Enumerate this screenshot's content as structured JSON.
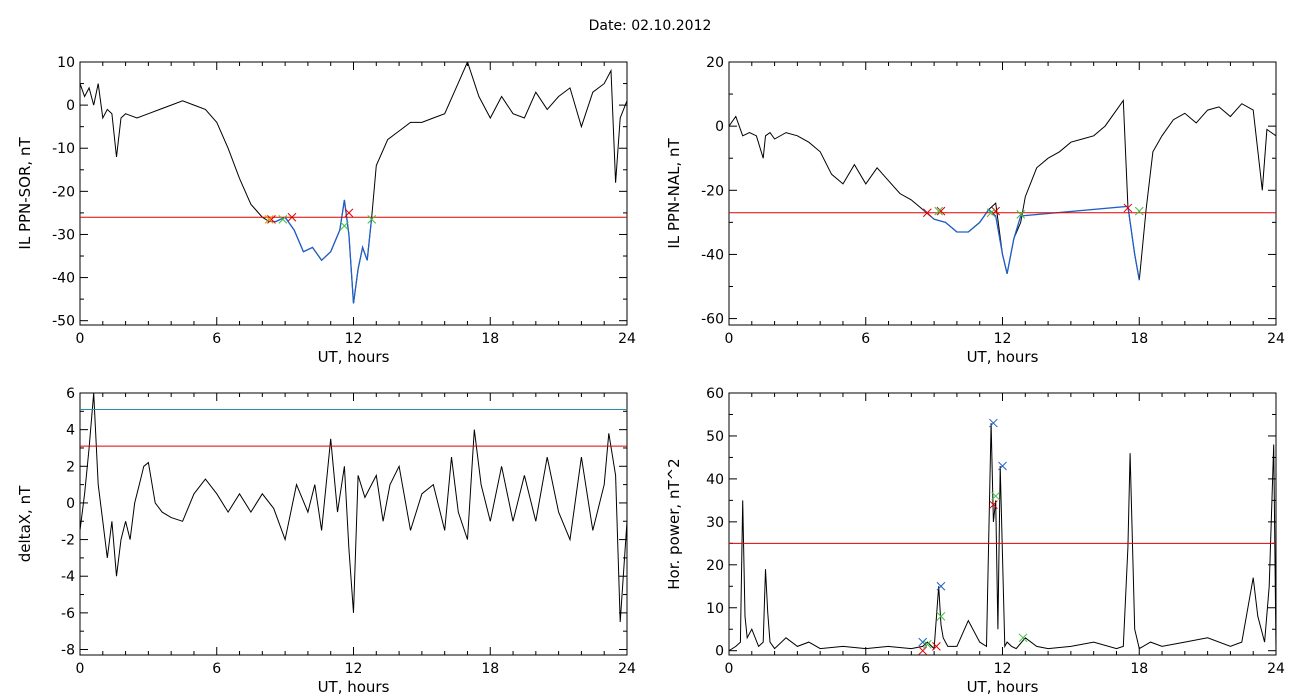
{
  "page": {
    "title": "Date:  02.10.2012"
  },
  "chart_data": [
    {
      "id": "p1",
      "type": "line",
      "xlabel": "UT, hours",
      "ylabel": "IL PPN-SOR, nT",
      "xlim": [
        0,
        24
      ],
      "ylim": [
        -51,
        10
      ],
      "xticks": [
        "0",
        "6",
        "12",
        "18",
        "24"
      ],
      "yticks": [
        "10",
        "0",
        "-10",
        "-20",
        "-30",
        "-40",
        "-50"
      ],
      "ytick_values": [
        10,
        0,
        -10,
        -20,
        -30,
        -40,
        -50
      ],
      "series": [
        {
          "color": "#000000",
          "x": [
            0,
            0.2,
            0.4,
            0.6,
            0.8,
            1.0,
            1.2,
            1.4,
            1.6,
            1.8,
            2.0,
            2.5,
            3.0,
            3.5,
            4.0,
            4.5,
            5.0,
            5.5,
            6.0,
            6.5,
            7.0,
            7.5,
            8.0,
            8.3,
            8.6,
            9.0,
            9.4,
            9.8,
            10.2,
            10.6,
            11.0,
            11.4,
            11.6,
            11.8,
            12.0,
            12.2,
            12.4,
            12.6,
            12.8,
            13.0,
            13.5,
            14.0,
            14.5,
            15.0,
            15.5,
            16.0,
            16.5,
            17.0,
            17.5,
            18.0,
            18.5,
            19.0,
            19.5,
            20.0,
            20.5,
            21.0,
            21.5,
            22.0,
            22.5,
            23.0,
            23.3,
            23.5,
            23.7,
            24.0
          ],
          "y": [
            5,
            2,
            4,
            0,
            5,
            -3,
            -1,
            -2,
            -12,
            -3,
            -2,
            -3,
            -2,
            -1,
            0,
            1,
            0,
            -1,
            -4,
            -10,
            -17,
            -23,
            -26,
            -27,
            -27,
            -26,
            -29,
            -34,
            -33,
            -36,
            -34,
            -29,
            -22,
            -30,
            -46,
            -38,
            -33,
            -36,
            -26,
            -14,
            -8,
            -6,
            -4,
            -4,
            -3,
            -2,
            4,
            10,
            2,
            -3,
            2,
            -2,
            -3,
            3,
            -1,
            2,
            4,
            -5,
            3,
            5,
            8,
            -18,
            -3,
            1
          ]
        },
        {
          "color": "#1f5fc8",
          "x": [
            8.3,
            8.6,
            9.0,
            9.4,
            9.8,
            10.2,
            10.6,
            11.0,
            11.4,
            11.6,
            11.8,
            12.0,
            12.2,
            12.4,
            12.6,
            12.8
          ],
          "y": [
            -27,
            -27,
            -26,
            -29,
            -34,
            -33,
            -36,
            -34,
            -29,
            -22,
            -30,
            -46,
            -38,
            -33,
            -36,
            -26
          ]
        }
      ],
      "hlines": [
        {
          "y": -26,
          "color": "#e00000"
        }
      ],
      "markers": [
        {
          "x": 8.4,
          "y": -26.5,
          "color": "#e00000"
        },
        {
          "x": 8.3,
          "y": -26.5,
          "color": "#d4a000"
        },
        {
          "x": 9.3,
          "y": -26,
          "color": "#e00000"
        },
        {
          "x": 8.9,
          "y": -26.5,
          "color": "#40c040"
        },
        {
          "x": 11.8,
          "y": -25,
          "color": "#e00000"
        },
        {
          "x": 11.6,
          "y": -28,
          "color": "#40c040"
        },
        {
          "x": 12.8,
          "y": -26.5,
          "color": "#40c040"
        }
      ]
    },
    {
      "id": "p2",
      "type": "line",
      "xlabel": "UT, hours",
      "ylabel": "IL PPN-NAL, nT",
      "xlim": [
        0,
        24
      ],
      "ylim": [
        -62,
        20
      ],
      "xticks": [
        "0",
        "6",
        "12",
        "18",
        "24"
      ],
      "yticks": [
        "20",
        "0",
        "-20",
        "-40",
        "-60"
      ],
      "ytick_values": [
        20,
        0,
        -20,
        -40,
        -60
      ],
      "series": [
        {
          "color": "#000000",
          "x": [
            0,
            0.3,
            0.6,
            0.9,
            1.2,
            1.5,
            1.6,
            1.8,
            2.0,
            2.5,
            3.0,
            3.5,
            4.0,
            4.5,
            5.0,
            5.5,
            6.0,
            6.5,
            7.0,
            7.5,
            8.0,
            8.5,
            9.0,
            9.5,
            10.0,
            10.5,
            11.0,
            11.4,
            11.7,
            12.0,
            12.2,
            12.5,
            12.8,
            13.0,
            13.5,
            14.0,
            14.5,
            15.0,
            15.5,
            16.0,
            16.5,
            17.0,
            17.3,
            17.5,
            17.8,
            18.0,
            18.3,
            18.6,
            19.0,
            19.5,
            20.0,
            20.5,
            21.0,
            21.5,
            22.0,
            22.5,
            23.0,
            23.4,
            23.6,
            23.8,
            24.0
          ],
          "y": [
            0,
            3,
            -3,
            -2,
            -3,
            -10,
            -3,
            -2,
            -4,
            -2,
            -3,
            -5,
            -8,
            -15,
            -18,
            -12,
            -18,
            -13,
            -17,
            -21,
            -23,
            -26,
            -29,
            -30,
            -33,
            -33,
            -30,
            -26,
            -24,
            -40,
            -46,
            -35,
            -30,
            -22,
            -13,
            -10,
            -8,
            -5,
            -4,
            -3,
            0,
            5,
            8,
            -25,
            -40,
            -48,
            -26,
            -8,
            -3,
            2,
            4,
            1,
            5,
            6,
            3,
            7,
            5,
            -20,
            -1,
            -2,
            -3
          ]
        },
        {
          "color": "#1f5fc8",
          "x": [
            8.5,
            9.0,
            9.5,
            10.0,
            10.5,
            11.0,
            11.4,
            11.7,
            12.0,
            12.2,
            12.5,
            12.8,
            17.5,
            17.8,
            18.0
          ],
          "y": [
            -26,
            -29,
            -30,
            -33,
            -33,
            -30,
            -26,
            -28,
            -40,
            -46,
            -35,
            -28,
            -25,
            -40,
            -48
          ]
        }
      ],
      "hlines": [
        {
          "y": -27,
          "color": "#e00000"
        }
      ],
      "markers": [
        {
          "x": 8.7,
          "y": -27,
          "color": "#e00000"
        },
        {
          "x": 9.3,
          "y": -26.5,
          "color": "#e00000"
        },
        {
          "x": 9.2,
          "y": -26.5,
          "color": "#40c040"
        },
        {
          "x": 11.7,
          "y": -26.5,
          "color": "#e00000"
        },
        {
          "x": 11.5,
          "y": -27,
          "color": "#40c040"
        },
        {
          "x": 12.8,
          "y": -27.5,
          "color": "#40c040"
        },
        {
          "x": 17.5,
          "y": -25.5,
          "color": "#e00000"
        },
        {
          "x": 18.0,
          "y": -26.5,
          "color": "#40c040"
        }
      ]
    },
    {
      "id": "p3",
      "type": "line",
      "xlabel": "UT, hours",
      "ylabel": "deltaX, nT",
      "xlim": [
        0,
        24
      ],
      "ylim": [
        -8.3,
        6
      ],
      "xticks": [
        "0",
        "6",
        "12",
        "18",
        "24"
      ],
      "yticks": [
        "6",
        "4",
        "2",
        "0",
        "-2",
        "-4",
        "-6",
        "-8"
      ],
      "ytick_values": [
        6,
        4,
        2,
        0,
        -2,
        -4,
        -6,
        -8
      ],
      "series": [
        {
          "color": "#000000",
          "x": [
            0,
            0.2,
            0.4,
            0.6,
            0.8,
            1.0,
            1.2,
            1.4,
            1.6,
            1.8,
            2.0,
            2.2,
            2.4,
            2.6,
            2.8,
            3.0,
            3.3,
            3.6,
            4.0,
            4.5,
            5.0,
            5.5,
            6.0,
            6.5,
            7.0,
            7.5,
            8.0,
            8.5,
            9.0,
            9.5,
            10.0,
            10.3,
            10.6,
            11.0,
            11.3,
            11.6,
            11.8,
            12.0,
            12.2,
            12.5,
            13.0,
            13.3,
            13.6,
            14.0,
            14.5,
            15.0,
            15.5,
            16.0,
            16.3,
            16.6,
            17.0,
            17.3,
            17.6,
            18.0,
            18.5,
            19.0,
            19.5,
            20.0,
            20.5,
            21.0,
            21.5,
            22.0,
            22.5,
            23.0,
            23.2,
            23.5,
            23.7,
            24.0
          ],
          "y": [
            -1.5,
            0.5,
            3,
            6,
            1,
            -1,
            -3,
            -1,
            -4,
            -2,
            -1,
            -2,
            0,
            1,
            2,
            2.2,
            0,
            -0.5,
            -0.8,
            -1,
            0.5,
            1.3,
            0.5,
            -0.5,
            0.5,
            -0.5,
            0.5,
            -0.3,
            -2,
            1,
            -0.5,
            1,
            -1.5,
            3.5,
            -0.5,
            2,
            -2.5,
            -6,
            1.5,
            0.3,
            1.5,
            -1,
            1,
            2,
            -1.5,
            0.5,
            1,
            -1.5,
            2.5,
            -0.5,
            -2,
            4,
            1,
            -1,
            2,
            -1,
            1.5,
            -1,
            2.5,
            -0.5,
            -2,
            2.5,
            -1.5,
            1,
            3.8,
            1.5,
            -6.5,
            -1
          ]
        }
      ],
      "hlines": [
        {
          "y": 5.1,
          "color": "#2a8fa0"
        },
        {
          "y": 3.1,
          "color": "#e00000"
        }
      ],
      "markers": []
    },
    {
      "id": "p4",
      "type": "line",
      "xlabel": "UT, hours",
      "ylabel": "Hor. power, nT^2",
      "xlim": [
        0,
        24
      ],
      "ylim": [
        -1,
        60
      ],
      "xticks": [
        "0",
        "6",
        "12",
        "18",
        "24"
      ],
      "yticks": [
        "60",
        "50",
        "40",
        "30",
        "20",
        "10",
        "0"
      ],
      "ytick_values": [
        60,
        50,
        40,
        30,
        20,
        10,
        0
      ],
      "series": [
        {
          "color": "#000000",
          "x": [
            0,
            0.3,
            0.5,
            0.6,
            0.7,
            0.8,
            1.0,
            1.3,
            1.5,
            1.6,
            1.7,
            1.8,
            2.0,
            2.5,
            3.0,
            3.5,
            4.0,
            5.0,
            6.0,
            7.0,
            8.0,
            8.5,
            8.7,
            9.0,
            9.2,
            9.3,
            9.4,
            9.6,
            10.0,
            10.5,
            11.0,
            11.3,
            11.5,
            11.6,
            11.7,
            11.8,
            11.9,
            12.0,
            12.1,
            12.2,
            12.4,
            12.6,
            13.0,
            13.5,
            14.0,
            15.0,
            16.0,
            17.0,
            17.3,
            17.5,
            17.6,
            17.8,
            18.0,
            18.5,
            19.0,
            20.0,
            21.0,
            22.0,
            22.5,
            23.0,
            23.2,
            23.5,
            23.7,
            23.9,
            24.0
          ],
          "y": [
            0,
            1,
            2,
            35,
            8,
            3,
            5,
            1,
            2,
            19,
            9,
            2,
            0.5,
            3,
            1,
            2,
            0.5,
            1,
            0.5,
            1,
            0.5,
            1,
            2,
            0.5,
            15,
            6,
            3,
            1,
            1,
            7,
            2,
            1,
            53,
            30,
            35,
            5,
            43,
            22,
            1,
            2,
            1,
            0.5,
            3,
            1,
            0.5,
            1,
            2,
            0.5,
            1,
            24,
            46,
            5,
            0.5,
            2,
            1,
            2,
            3,
            1,
            2,
            17,
            8,
            2,
            15,
            48,
            0
          ]
        }
      ],
      "hlines": [
        {
          "y": 25,
          "color": "#e00000"
        }
      ],
      "markers": [
        {
          "x": 8.5,
          "y": 2,
          "color": "#1f5fc8"
        },
        {
          "x": 8.5,
          "y": 0,
          "color": "#e00000"
        },
        {
          "x": 8.7,
          "y": 1.5,
          "color": "#40c040"
        },
        {
          "x": 9.3,
          "y": 15,
          "color": "#1f5fc8"
        },
        {
          "x": 9.3,
          "y": 8,
          "color": "#40c040"
        },
        {
          "x": 9.1,
          "y": 1,
          "color": "#e00000"
        },
        {
          "x": 11.6,
          "y": 53,
          "color": "#1f5fc8"
        },
        {
          "x": 11.6,
          "y": 34,
          "color": "#e00000"
        },
        {
          "x": 11.7,
          "y": 36,
          "color": "#40c040"
        },
        {
          "x": 12.0,
          "y": 43,
          "color": "#1f5fc8"
        },
        {
          "x": 12.9,
          "y": 3,
          "color": "#40c040"
        }
      ]
    }
  ]
}
